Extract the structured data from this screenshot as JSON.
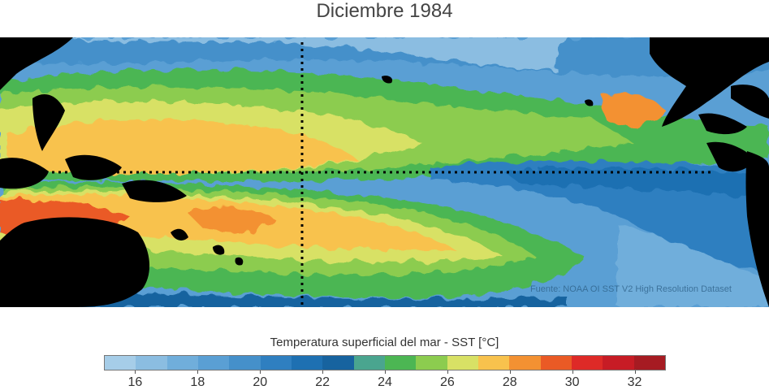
{
  "title": "Diciembre 1984",
  "credit": "Fuente: NOAA OI SST V2 High Resolution Dataset",
  "colorbar": {
    "label": "Temperatura superficial del mar - SST  [°C]",
    "unit": "°C",
    "min": 15,
    "max": 33,
    "colors": [
      "#a6cde8",
      "#8bbde1",
      "#70aedb",
      "#5a9fd4",
      "#4590ca",
      "#2f7fc0",
      "#1e70b2",
      "#17639f",
      "#4aa58f",
      "#4cb653",
      "#8ccc4f",
      "#d8e165",
      "#f8c24d",
      "#f39132",
      "#ea5a25",
      "#de2a27",
      "#c71c25",
      "#a61b22"
    ],
    "tick_labels": [
      "16",
      "18",
      "20",
      "22",
      "24",
      "26",
      "28",
      "30",
      "32"
    ],
    "tick_values": [
      16,
      18,
      20,
      22,
      24,
      26,
      28,
      30,
      32
    ]
  },
  "map": {
    "region": "Pacífico tropical",
    "dotted_lines": [
      "ecuador",
      "meridiano central"
    ],
    "land_color": "#000000"
  }
}
